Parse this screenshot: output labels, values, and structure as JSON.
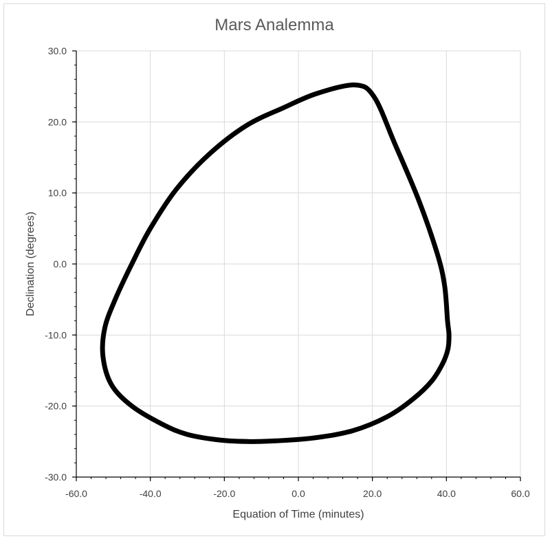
{
  "chart_data": {
    "type": "scatter",
    "title": "Mars Analemma",
    "xlabel": "Equation of Time (minutes)",
    "ylabel": "Declination (degrees)",
    "xlim": [
      -60,
      60
    ],
    "ylim": [
      -30,
      30
    ],
    "x_ticks": [
      "-60.0",
      "-40.0",
      "-20.0",
      "0.0",
      "20.0",
      "40.0",
      "60.0"
    ],
    "y_ticks": [
      "30.0",
      "20.0",
      "10.0",
      "0.0",
      "-10.0",
      "-20.0",
      "-30.0"
    ],
    "grid": true,
    "legend": "none",
    "line_color": "#000000",
    "series": [
      {
        "x": [
          15.4,
          20.5,
          26.0,
          32.5,
          37.5,
          39.5,
          40.3,
          40.7,
          40.4,
          39.0,
          36.0,
          31.0,
          24.0,
          14.5,
          4.0,
          -6.0,
          -13.0,
          -21.0,
          -30.0,
          -37.0,
          -45.0,
          -50.5,
          -52.8,
          -52.3,
          -49.5,
          -45.0,
          -40.0,
          -33.0,
          -24.0,
          -14.0,
          -4.0,
          5.0,
          15.4
        ],
        "y": [
          25.2,
          23.5,
          17.0,
          9.0,
          1.5,
          -3.0,
          -8.0,
          -10.0,
          -12.0,
          -14.0,
          -16.5,
          -19.0,
          -21.5,
          -23.5,
          -24.5,
          -24.9,
          -25.0,
          -24.8,
          -24.0,
          -22.5,
          -20.0,
          -17.0,
          -13.0,
          -9.0,
          -5.0,
          0.0,
          5.0,
          10.5,
          15.5,
          19.5,
          22.0,
          24.0,
          25.2
        ]
      }
    ]
  }
}
